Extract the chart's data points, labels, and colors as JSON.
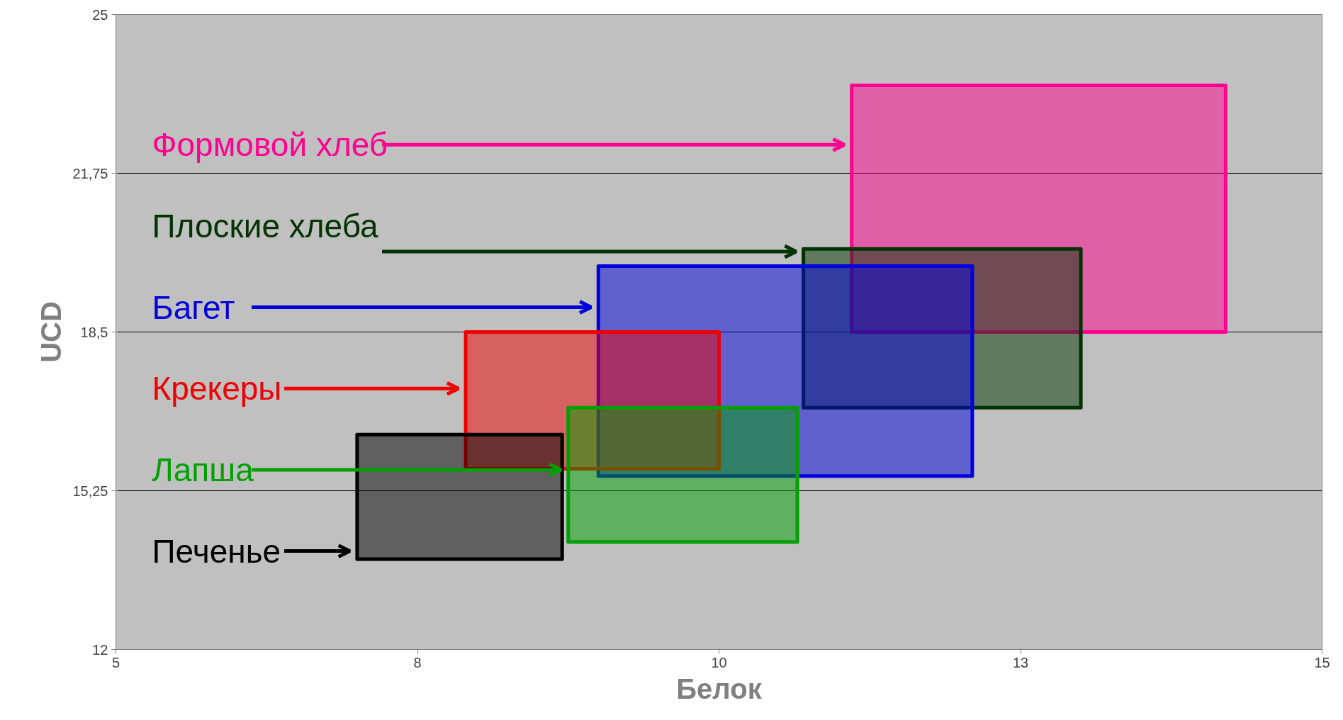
{
  "chart_data": {
    "type": "area",
    "xlabel": "Белок",
    "ylabel": "UCD",
    "xlim": [
      5,
      15
    ],
    "ylim": [
      12,
      25
    ],
    "xticks": [
      5,
      {
        "value": 7.5,
        "label": "8"
      },
      10,
      {
        "value": 12.5,
        "label": "13"
      },
      15
    ],
    "yticks": [
      12,
      {
        "value": 15.25,
        "label": "15,25"
      },
      {
        "value": 18.5,
        "label": "18,5"
      },
      {
        "value": 21.75,
        "label": "21,75"
      },
      25
    ],
    "grid": "y",
    "series": [
      {
        "name": "Формовой хлеб",
        "color": "#ff0090",
        "x": [
          11.1,
          14.2,
          14.2,
          11.1,
          11.1
        ],
        "values": [
          18.5,
          18.5,
          23.55,
          23.55,
          18.5
        ]
      },
      {
        "name": "Плоские хлеба",
        "color": "#003300",
        "x": [
          10.7,
          13.0,
          13.0,
          10.7,
          10.7
        ],
        "values": [
          16.95,
          16.95,
          20.2,
          20.2,
          16.95
        ]
      },
      {
        "name": "Багет",
        "color": "#0000dd",
        "x": [
          9.0,
          12.1,
          12.1,
          9.0,
          9.0
        ],
        "values": [
          15.55,
          15.55,
          19.85,
          19.85,
          15.55
        ]
      },
      {
        "name": "Крекеры",
        "color": "#ee0000",
        "x": [
          7.9,
          10.0,
          10.0,
          7.9,
          7.9
        ],
        "values": [
          15.7,
          15.7,
          18.5,
          18.5,
          15.7
        ]
      },
      {
        "name": "Лапша",
        "color": "#00a000",
        "x": [
          8.75,
          10.65,
          10.65,
          8.75,
          8.75
        ],
        "values": [
          14.2,
          14.2,
          16.95,
          16.95,
          14.2
        ]
      },
      {
        "name": "Печенье",
        "color": "#000000",
        "x": [
          7.0,
          8.7,
          8.7,
          7.0,
          7.0
        ],
        "values": [
          13.85,
          13.85,
          16.4,
          16.4,
          13.85
        ]
      }
    ]
  }
}
